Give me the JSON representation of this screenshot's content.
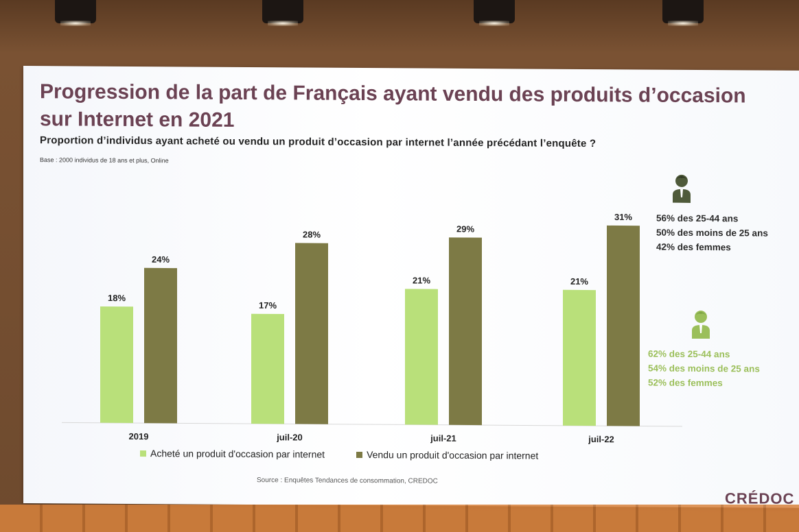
{
  "title": "Progression de la part de Français ayant vendu des produits d’occasion sur Internet en 2021",
  "subtitle": "Proportion d’individus ayant acheté ou vendu un produit d’occasion par internet l’année précédant l’enquête ?",
  "base_note": "Base : 2000 individus de 18 ans et plus, Online",
  "source": "Source : Enquêtes Tendances de consommation, CREDOC",
  "logo": "CRÉDOC",
  "callouts": {
    "sold": {
      "icon": "person-icon",
      "color": "#4f5a3a",
      "lines": [
        "56% des 25-44 ans",
        "50% des moins de 25 ans",
        "42% des femmes"
      ]
    },
    "bought": {
      "icon": "person-icon",
      "color": "#9bbf5a",
      "lines": [
        "62% des 25-44 ans",
        "54% des moins de 25 ans",
        "52% des femmes"
      ]
    }
  },
  "chart_data": {
    "type": "bar",
    "categories": [
      "2019",
      "juil-20",
      "juil-21",
      "juil-22"
    ],
    "series": [
      {
        "name": "Acheté un produit d'occasion par internet",
        "values": [
          18,
          17,
          21,
          21
        ],
        "labels": [
          "18%",
          "17%",
          "21%",
          "21%"
        ],
        "color": "#b9e07a"
      },
      {
        "name": "Vendu un produit d'occasion par internet",
        "values": [
          24,
          28,
          29,
          31
        ],
        "labels": [
          "24%",
          "28%",
          "29%",
          "31%"
        ],
        "color": "#7d7a45"
      }
    ],
    "ylim": [
      0,
      35
    ],
    "grid": false,
    "legend_position": "bottom"
  },
  "colors": {
    "title": "#6b4253",
    "bought_bar": "#b9e07a",
    "sold_bar": "#7d7a45"
  }
}
